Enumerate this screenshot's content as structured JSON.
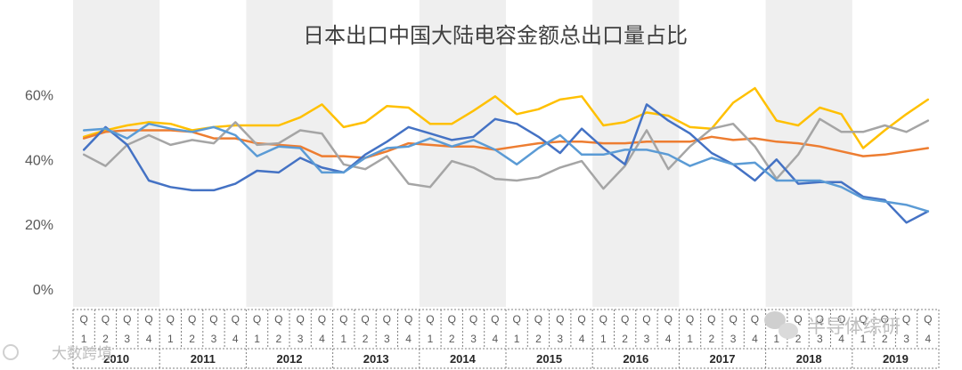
{
  "chart_data": {
    "type": "line",
    "title": "日本出口中国大陆电容金额总出口量占比",
    "yticks": [
      "0%",
      "20%",
      "40%",
      "60%"
    ],
    "ylim": [
      0,
      70
    ],
    "grid": false,
    "legend": "none",
    "quarter_prefix": "Q",
    "quarters": [
      "1",
      "2",
      "3",
      "4"
    ],
    "years": [
      "2010",
      "2011",
      "2012",
      "2013",
      "2014",
      "2015",
      "2016",
      "2017",
      "2018",
      "2019"
    ],
    "band_color": "#efefef",
    "series": [
      {
        "color": "#ffc000",
        "values": [
          47,
          49,
          50.5,
          51.5,
          51,
          49,
          50,
          50.5,
          50.5,
          50.5,
          53,
          57,
          50,
          51.5,
          56.5,
          56,
          51,
          51,
          55,
          59.5,
          54,
          55.5,
          58.5,
          59.5,
          50.5,
          51.5,
          54.5,
          53.5,
          50,
          49.5,
          57.5,
          62,
          52,
          50.5,
          56,
          54,
          43.5,
          49,
          54,
          58.5
        ]
      },
      {
        "color": "#ed7d31",
        "values": [
          46.5,
          48.5,
          49,
          49,
          49,
          48.5,
          46.5,
          46.5,
          45,
          44.5,
          44,
          41,
          41,
          40.5,
          42.5,
          45,
          44.5,
          44,
          44,
          43,
          44,
          45,
          45.5,
          45.5,
          45,
          45,
          45.5,
          45.5,
          45.5,
          47,
          46,
          46.5,
          45.5,
          45,
          44,
          42.5,
          41,
          41.5,
          42.5,
          43.5
        ]
      },
      {
        "color": "#a5a5a5",
        "values": [
          41.5,
          38,
          44.5,
          47.5,
          44.5,
          46,
          45,
          51.5,
          44.5,
          45,
          49,
          48,
          38.5,
          37,
          41,
          32.5,
          31.5,
          39.5,
          37.5,
          34,
          33.5,
          34.5,
          37.5,
          39.5,
          31,
          38,
          49,
          37,
          44,
          49.5,
          51,
          44,
          34,
          41.5,
          52.5,
          48.5,
          48.5,
          50.5,
          48.5,
          52
        ]
      },
      {
        "color": "#4472c4",
        "values": [
          43,
          50,
          44.5,
          33.5,
          31.5,
          30.5,
          30.5,
          32.5,
          36.5,
          36,
          40.5,
          37.5,
          36,
          41.5,
          45.5,
          50,
          48,
          46,
          47,
          52.5,
          51,
          47,
          42,
          49.5,
          43.5,
          38.5,
          57,
          52,
          48,
          42,
          38.5,
          33.5,
          40,
          32.5,
          33,
          33,
          28.5,
          27.5,
          20.5,
          24
        ]
      },
      {
        "color": "#5b9bd5",
        "values": [
          49,
          49.5,
          46.5,
          51,
          49.5,
          48.5,
          50,
          47.5,
          41,
          44,
          43.5,
          36,
          36,
          40.5,
          43.5,
          44,
          46.5,
          44,
          46,
          43,
          38.5,
          43.5,
          47.5,
          41.5,
          41.5,
          43,
          43,
          41.5,
          38,
          40.5,
          38.5,
          39,
          33.5,
          33.5,
          33.5,
          31.5,
          28,
          27,
          26,
          24
        ]
      }
    ]
  },
  "watermarks": {
    "left": "大数跨境",
    "right": "半导体综研"
  }
}
